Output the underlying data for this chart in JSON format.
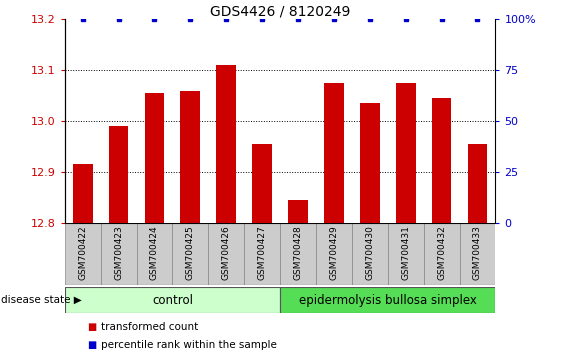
{
  "title": "GDS4426 / 8120249",
  "samples": [
    "GSM700422",
    "GSM700423",
    "GSM700424",
    "GSM700425",
    "GSM700426",
    "GSM700427",
    "GSM700428",
    "GSM700429",
    "GSM700430",
    "GSM700431",
    "GSM700432",
    "GSM700433"
  ],
  "bar_values": [
    12.915,
    12.99,
    13.055,
    13.06,
    13.11,
    12.955,
    12.845,
    13.075,
    13.035,
    13.075,
    13.045,
    12.955
  ],
  "percentile_values": [
    100,
    100,
    100,
    100,
    100,
    100,
    100,
    100,
    100,
    100,
    100,
    100
  ],
  "bar_color": "#cc0000",
  "percentile_color": "#0000cc",
  "ylim_left": [
    12.8,
    13.2
  ],
  "ylim_right": [
    0,
    100
  ],
  "yticks_left": [
    12.8,
    12.9,
    13.0,
    13.1,
    13.2
  ],
  "yticks_right": [
    0,
    25,
    50,
    75,
    100
  ],
  "control_samples": 6,
  "disease_samples": 6,
  "control_label": "control",
  "disease_label": "epidermolysis bullosa simplex",
  "group_label": "disease state",
  "legend_bar_label": "transformed count",
  "legend_pct_label": "percentile rank within the sample",
  "control_color": "#ccffcc",
  "disease_color": "#55dd55",
  "tick_area_color": "#cccccc",
  "background_color": "#ffffff"
}
